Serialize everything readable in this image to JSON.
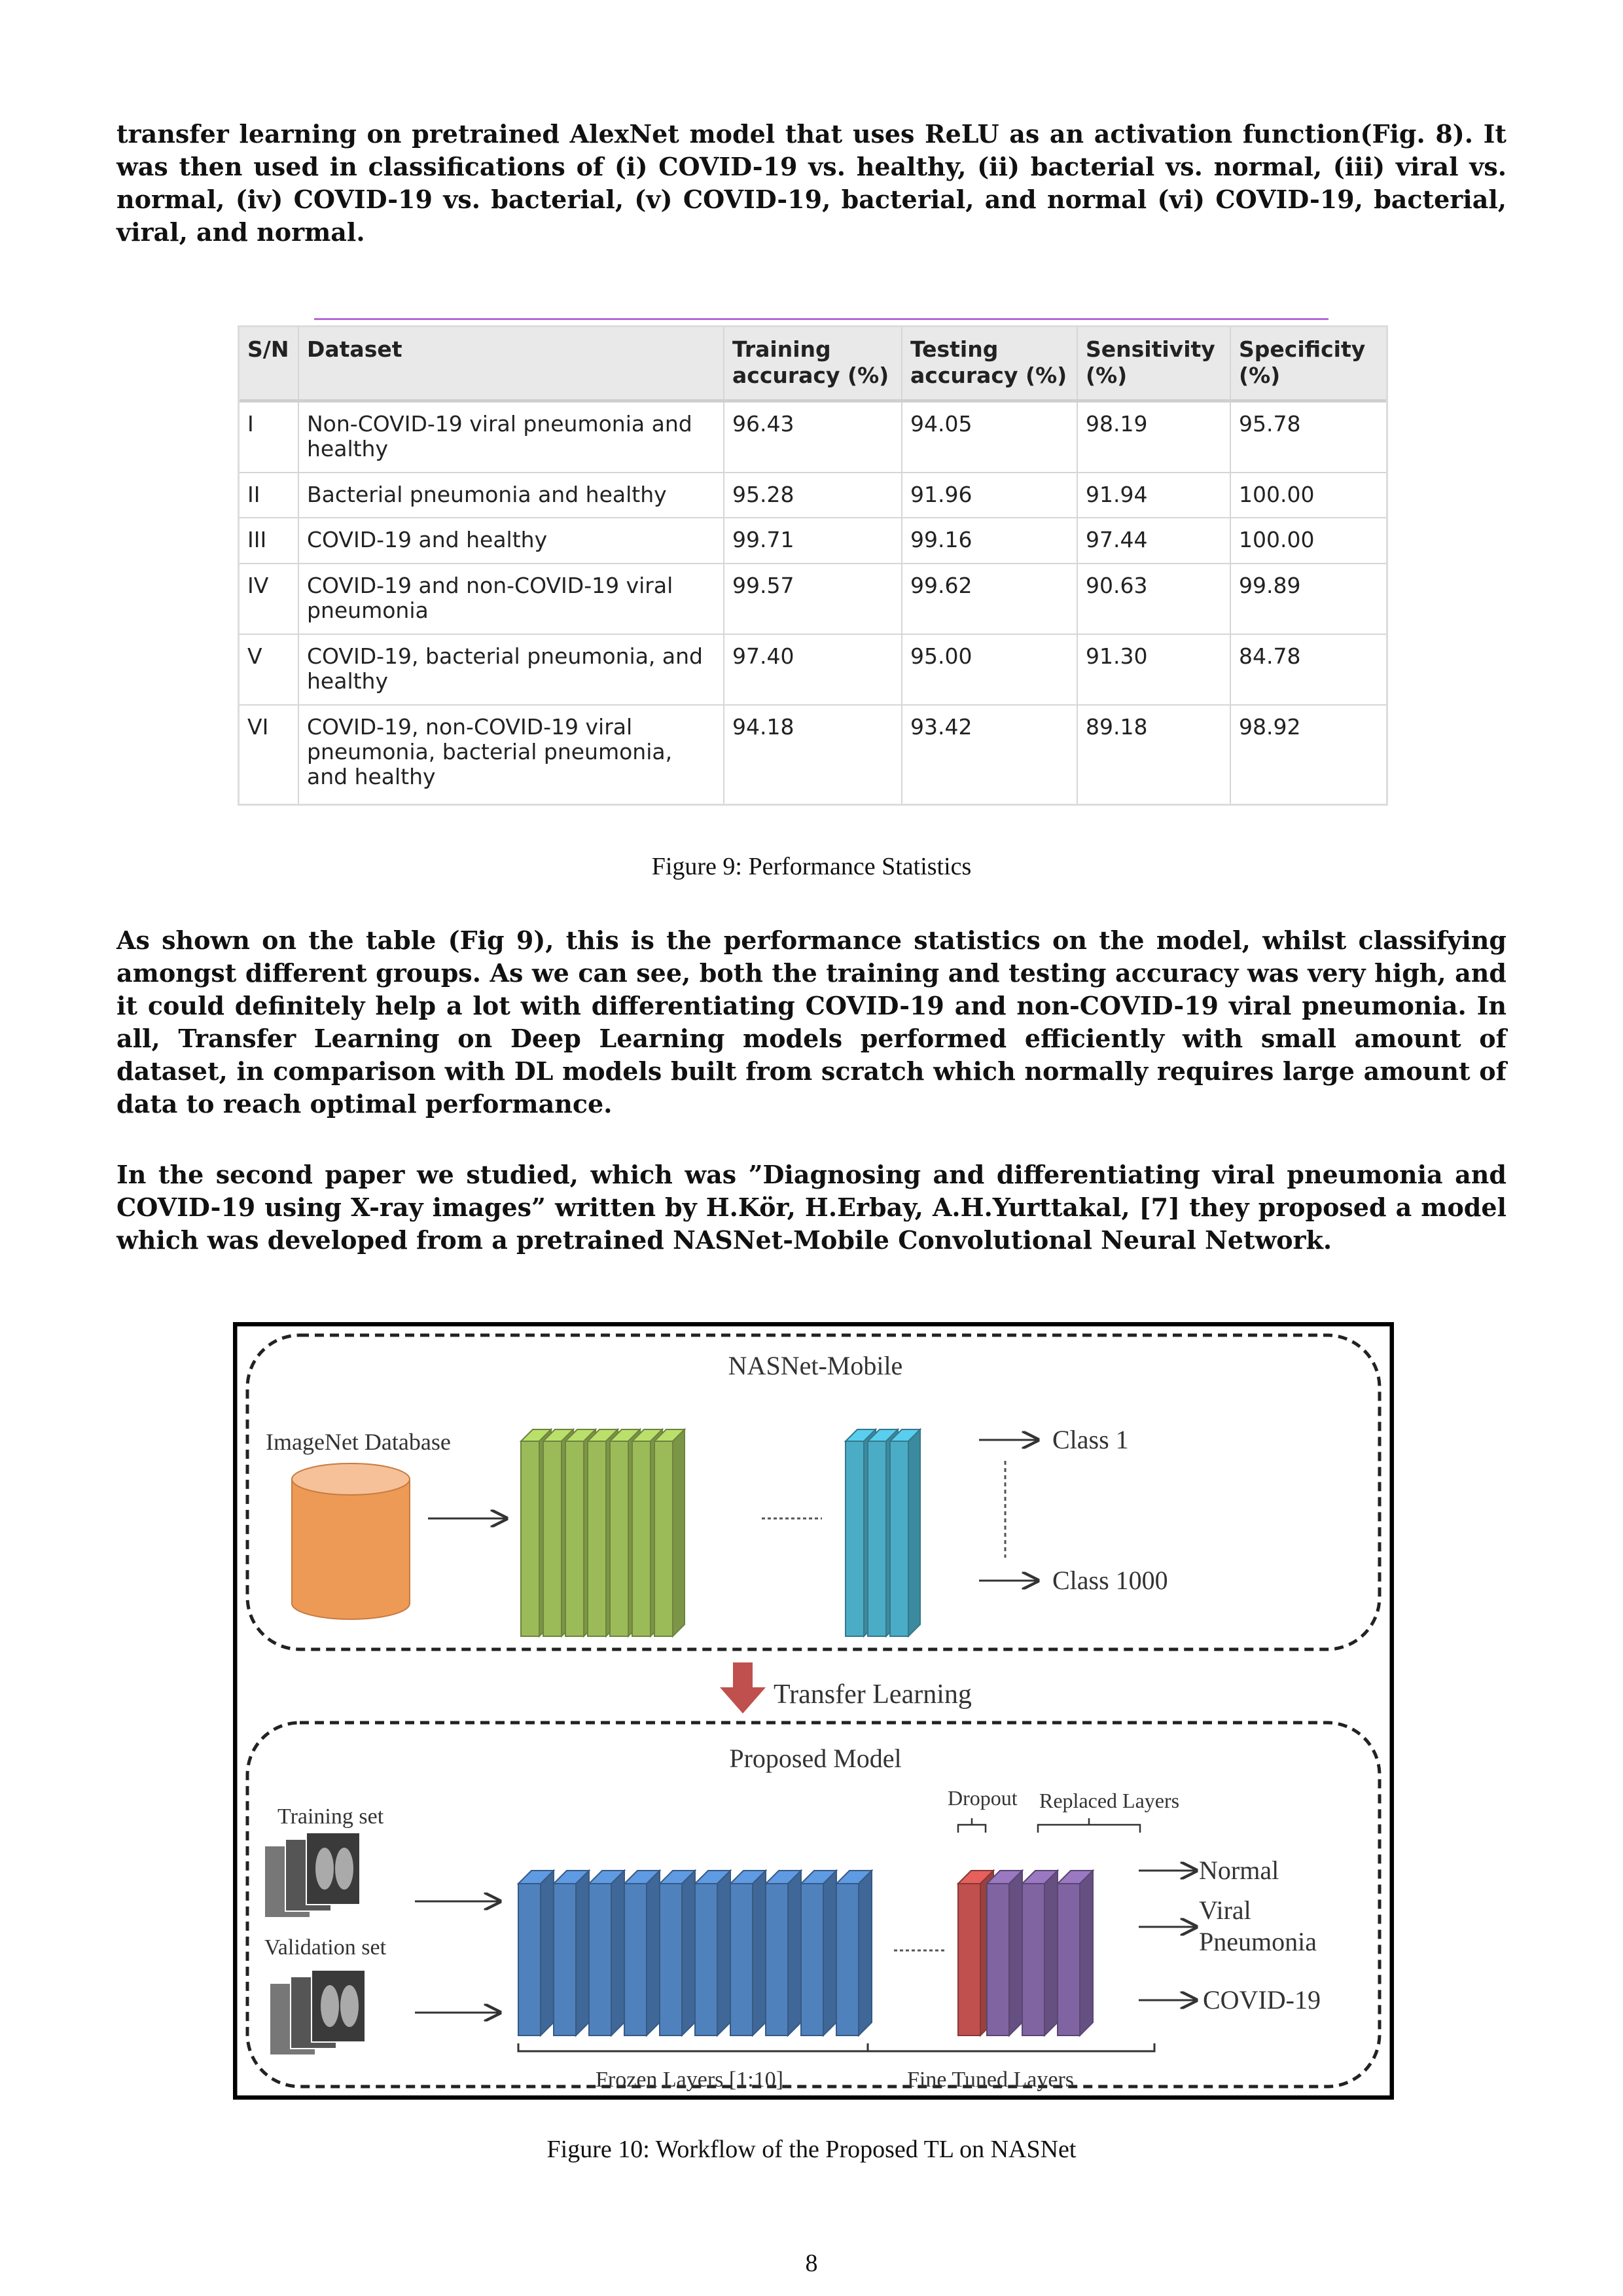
{
  "intro_paragraph": "transfer learning on pretrained AlexNet model that uses ReLU as an activation function(Fig. 8). It was then used in classifications of (i) COVID-19 vs. healthy, (ii) bacterial vs. normal, (iii) viral vs. normal, (iv) COVID-19 vs. bacterial, (v) COVID-19, bacterial, and normal (vi) COVID-19, bacterial, viral, and normal.",
  "table": {
    "headers": [
      "S/N",
      "Dataset",
      "Training accuracy (%)",
      "Testing accuracy (%)",
      "Sensitivity (%)",
      "Specificity (%)"
    ],
    "rows": [
      [
        "I",
        "Non-COVID-19 viral pneumonia and healthy",
        "96.43",
        "94.05",
        "98.19",
        "95.78"
      ],
      [
        "II",
        "Bacterial pneumonia and healthy",
        "95.28",
        "91.96",
        "91.94",
        "100.00"
      ],
      [
        "III",
        "COVID-19 and healthy",
        "99.71",
        "99.16",
        "97.44",
        "100.00"
      ],
      [
        "IV",
        "COVID-19 and non-COVID-19 viral pneumonia",
        "99.57",
        "99.62",
        "90.63",
        "99.89"
      ],
      [
        "V",
        "COVID-19, bacterial pneumonia, and healthy",
        "97.40",
        "95.00",
        "91.30",
        "84.78"
      ],
      [
        "VI",
        "COVID-19, non-COVID-19 viral pneumonia, bacterial pneumonia, and healthy",
        "94.18",
        "93.42",
        "89.18",
        "98.92"
      ]
    ]
  },
  "figure9_caption": "Figure 9: Performance Statistics",
  "paragraph2": "As shown on the table (Fig 9), this is the performance statistics on the model, whilst classifying amongst different groups. As we can see, both the training and testing accuracy was very high, and it could definitely help a lot with differentiating COVID-19 and non-COVID-19 viral pneumonia. In all, Transfer Learning on Deep Learning models performed efficiently with small amount of dataset, in comparison with DL models built from scratch which normally requires large amount of data to reach optimal performance.",
  "paragraph3": "In the second paper we studied, which was ”Diagnosing and differentiating viral pneumonia and COVID-19 using X-ray images” written by H.Kör, H.Erbay, A.H.Yurttakal, [7] they proposed a model which was developed from a pretrained NASNet-Mobile Convolutional Neural Network.",
  "diagram": {
    "top_title": "NASNet-Mobile",
    "imagenet_label": "ImageNet Database",
    "class1": "Class 1",
    "class1000": "Class 1000",
    "transfer_label": "Transfer Learning",
    "bottom_title": "Proposed Model",
    "training_label": "Training set",
    "validation_label": "Validation set",
    "dropout_label": "Dropout",
    "replaced_label": "Replaced Layers",
    "out_normal": "Normal",
    "out_viral_1": "Viral",
    "out_viral_2": "Pneumonia",
    "out_covid": "COVID-19",
    "frozen_label": "Frozen Layers [1:10]",
    "finetuned_label": "Fine Tuned Layers",
    "colors": {
      "cylinder": "#ee9a57",
      "green_layer": "#9bbb59",
      "teal_layer": "#4bacc6",
      "blue_layer": "#4f81bd",
      "red_layer": "#c0504d",
      "purple_layer": "#8064a2",
      "arrow_red": "#c0504d"
    }
  },
  "figure10_caption": "Figure 10: Workflow of the Proposed TL on NASNet",
  "page_number": "8"
}
